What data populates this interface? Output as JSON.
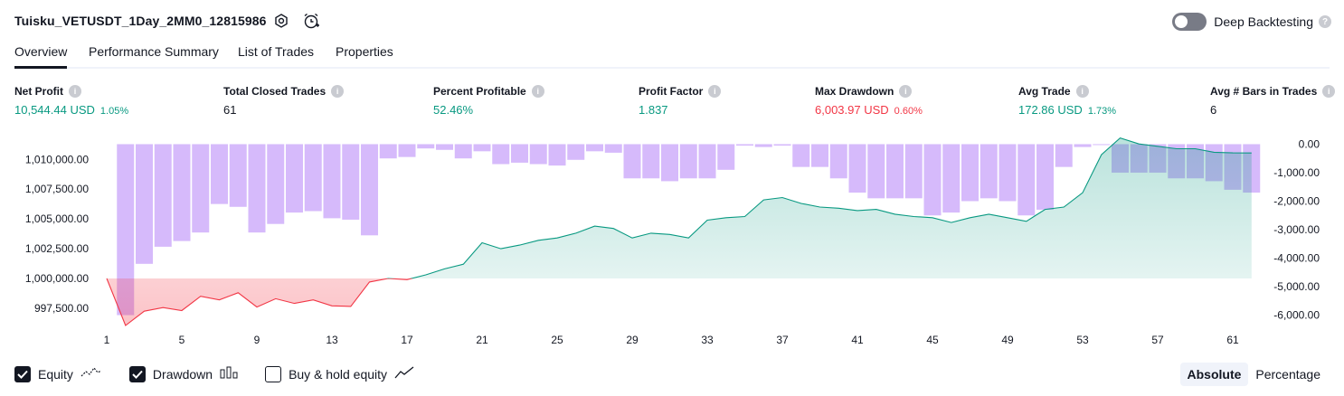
{
  "header": {
    "strategy_title": "Tuisku_VETUSDT_1Day_2MM0_12815986",
    "deep_backtesting_label": "Deep Backtesting",
    "deep_backtesting_enabled": false
  },
  "tabs": [
    {
      "label": "Overview",
      "active": true
    },
    {
      "label": "Performance Summary",
      "active": false
    },
    {
      "label": "List of Trades",
      "active": false
    },
    {
      "label": "Properties",
      "active": false
    }
  ],
  "metrics": [
    {
      "label": "Net Profit",
      "value": "10,544.44 USD",
      "pct": "1.05%",
      "color": "green"
    },
    {
      "label": "Total Closed Trades",
      "value": "61",
      "pct": "",
      "color": "dark"
    },
    {
      "label": "Percent Profitable",
      "value": "52.46%",
      "pct": "",
      "color": "green"
    },
    {
      "label": "Profit Factor",
      "value": "1.837",
      "pct": "",
      "color": "green"
    },
    {
      "label": "Max Drawdown",
      "value": "6,003.97 USD",
      "pct": "0.60%",
      "color": "red"
    },
    {
      "label": "Avg Trade",
      "value": "172.86 USD",
      "pct": "1.73%",
      "color": "green"
    },
    {
      "label": "Avg # Bars in Trades",
      "value": "6",
      "pct": "",
      "color": "dark"
    }
  ],
  "legend": {
    "equity_label": "Equity",
    "equity_checked": true,
    "drawdown_label": "Drawdown",
    "drawdown_checked": true,
    "buyhold_label": "Buy & hold equity",
    "buyhold_checked": false
  },
  "mode": {
    "absolute_label": "Absolute",
    "percentage_label": "Percentage",
    "selected": "Absolute"
  },
  "colors": {
    "equity_up": "#089981",
    "equity_down": "#f23645",
    "drawdown_bar": "#d1b3fb",
    "text": "#131722"
  },
  "chart_data": {
    "type": "area",
    "x_ticks": [
      "1",
      "5",
      "9",
      "13",
      "17",
      "21",
      "25",
      "29",
      "33",
      "37",
      "41",
      "45",
      "49",
      "53",
      "57",
      "61"
    ],
    "left_ticks": [
      "1,010,000.00",
      "1,007,500.00",
      "1,005,000.00",
      "1,002,500.00",
      "1,000,000.00",
      "997,500.00"
    ],
    "right_ticks": [
      "0.00",
      "-1,000.00",
      "-2,000.00",
      "-3,000.00",
      "-4,000.00",
      "-5,000.00",
      "-6,000.00"
    ],
    "left_ylim": [
      996200,
      1012000
    ],
    "right_ylim": [
      -6300,
      300
    ],
    "baseline": 1000000,
    "series": [
      {
        "name": "Equity",
        "x": [
          1,
          2,
          3,
          4,
          5,
          6,
          7,
          8,
          9,
          10,
          11,
          12,
          13,
          14,
          15,
          16,
          17,
          18,
          19,
          20,
          21,
          22,
          23,
          24,
          25,
          26,
          27,
          28,
          29,
          30,
          31,
          32,
          33,
          34,
          35,
          36,
          37,
          38,
          39,
          40,
          41,
          42,
          43,
          44,
          45,
          46,
          47,
          48,
          49,
          50,
          51,
          52,
          53,
          54,
          55,
          56,
          57,
          58,
          59,
          60,
          61,
          62
        ],
        "values": [
          1000000,
          996050,
          997250,
          997550,
          997300,
          998500,
          998200,
          998800,
          997600,
          998300,
          997900,
          998200,
          997700,
          997650,
          999700,
          1000000,
          999900,
          1000300,
          1000800,
          1001200,
          1003000,
          1002500,
          1002800,
          1003200,
          1003400,
          1003800,
          1004400,
          1004200,
          1003400,
          1003800,
          1003700,
          1003400,
          1004900,
          1005100,
          1005200,
          1006600,
          1006800,
          1006300,
          1006000,
          1005900,
          1005700,
          1005800,
          1005400,
          1005200,
          1005100,
          1004700,
          1005100,
          1005400,
          1005100,
          1004800,
          1005800,
          1006000,
          1007200,
          1010400,
          1011800,
          1011300,
          1011100,
          1010900,
          1010900,
          1010600,
          1010550,
          1010544
        ]
      },
      {
        "name": "Drawdown",
        "x": [
          2,
          3,
          4,
          5,
          6,
          7,
          8,
          9,
          10,
          11,
          12,
          13,
          14,
          15,
          16,
          17,
          18,
          19,
          20,
          21,
          22,
          23,
          24,
          25,
          26,
          27,
          28,
          29,
          30,
          31,
          32,
          33,
          34,
          35,
          36,
          37,
          38,
          39,
          40,
          41,
          42,
          43,
          44,
          45,
          46,
          47,
          48,
          49,
          50,
          51,
          52,
          53,
          54,
          55,
          56,
          57,
          58,
          59,
          60,
          61,
          62
        ],
        "values": [
          -6000,
          -4200,
          -3600,
          -3400,
          -3100,
          -2100,
          -2200,
          -3100,
          -2800,
          -2400,
          -2350,
          -2600,
          -2650,
          -3200,
          -500,
          -450,
          -150,
          -200,
          -500,
          -250,
          -700,
          -650,
          -700,
          -750,
          -550,
          -250,
          -300,
          -1200,
          -1200,
          -1300,
          -1200,
          -1200,
          -900,
          -50,
          -100,
          -50,
          -800,
          -800,
          -1200,
          -1700,
          -1900,
          -1900,
          -1900,
          -2500,
          -2400,
          -2000,
          -1900,
          -2000,
          -2500,
          -2300,
          -800,
          -100,
          0,
          -1000,
          -1000,
          -1000,
          -1200,
          -1200,
          -1300,
          -1600,
          -1700
        ]
      }
    ]
  }
}
